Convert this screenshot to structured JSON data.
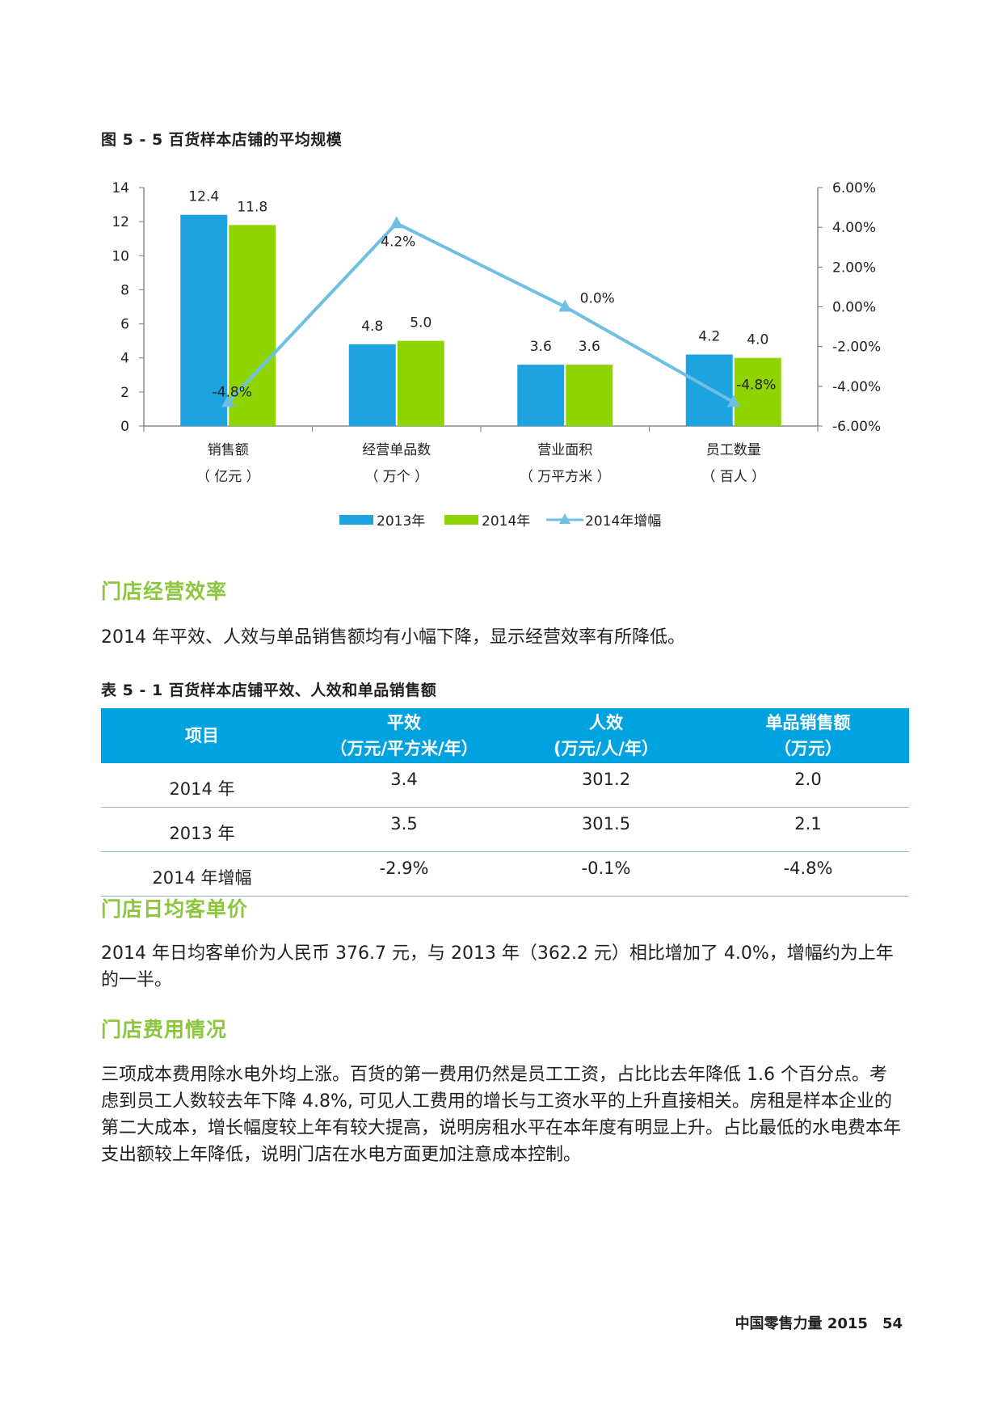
{
  "figure": {
    "title": "图 5 - 5 百货样本店铺的平均规模"
  },
  "chart_data": {
    "type": "bar+line",
    "title": "图 5 - 5 百货样本店铺的平均规模",
    "categories": [
      {
        "name": "销售额",
        "unit": "（ 亿元 ）"
      },
      {
        "name": "经营单品数",
        "unit": "（ 万个 ）"
      },
      {
        "name": "营业面积",
        "unit": "（ 万平方米 ）"
      },
      {
        "name": "员工数量",
        "unit": "（ 百人 ）"
      }
    ],
    "series": [
      {
        "name": "2013年",
        "type": "bar",
        "axis": "left",
        "color": "#1ca3e0",
        "values": [
          12.4,
          4.8,
          3.6,
          4.2
        ],
        "labels": [
          "12.4",
          "4.8",
          "3.6",
          "4.2"
        ]
      },
      {
        "name": "2014年",
        "type": "bar",
        "axis": "left",
        "color": "#8fd400",
        "values": [
          11.8,
          5.0,
          3.6,
          4.0
        ],
        "labels": [
          "11.8",
          "5.0",
          "3.6",
          "4.0"
        ]
      },
      {
        "name": "2014年增幅",
        "type": "line",
        "axis": "right",
        "color": "#6fbfe2",
        "values": [
          -4.8,
          4.2,
          0.0,
          -4.8
        ],
        "labels": [
          "-4.8%",
          "4.2%",
          "0.0%",
          "-4.8%"
        ]
      }
    ],
    "y_left": {
      "range": [
        0,
        14
      ],
      "ticks": [
        "0",
        "2",
        "4",
        "6",
        "8",
        "10",
        "12",
        "14"
      ]
    },
    "y_right": {
      "range": [
        -6,
        6
      ],
      "ticks": [
        "-6.00%",
        "-4.00%",
        "-2.00%",
        "0.00%",
        "2.00%",
        "4.00%",
        "6.00%"
      ]
    },
    "legend_position": "bottom"
  },
  "sections": {
    "efficiency": {
      "heading": "门店经营效率",
      "text": "2014 年平效、人效与单品销售额均有小幅下降，显示经营效率有所降低。"
    },
    "avg_price": {
      "heading": "门店日均客单价",
      "text": "2014 年日均客单价为人民币 376.7 元，与 2013 年（362.2 元）相比增加了 4.0%，增幅约为上年的一半。"
    },
    "expenses": {
      "heading": "门店费用情况",
      "text": "三项成本费用除水电外均上涨。百货的第一费用仍然是员工工资，占比比去年降低 1.6 个百分点。考虑到员工人数较去年下降 4.8%, 可见人工费用的增长与工资水平的上升直接相关。房租是样本企业的第二大成本，增长幅度较上年有较大提高，说明房租水平在本年度有明显上升。占比最低的水电费本年支出额较上年降低，说明门店在水电方面更加注意成本控制。"
    }
  },
  "table": {
    "title": "表 5 - 1 百货样本店铺平效、人效和单品销售额",
    "headers": [
      {
        "l1": "项目",
        "l2": ""
      },
      {
        "l1": "平效",
        "l2": "（万元/平方米/年）"
      },
      {
        "l1": "人效",
        "l2": "(万元/人/年）"
      },
      {
        "l1": "单品销售额",
        "l2": "（万元）"
      }
    ],
    "rows": [
      [
        "2014 年",
        "3.4",
        "301.2",
        "2.0"
      ],
      [
        "2013 年",
        "3.5",
        "301.5",
        "2.1"
      ],
      [
        "2014 年增幅",
        "-2.9%",
        "-0.1%",
        "-4.8%"
      ]
    ]
  },
  "footer": {
    "publication": "中国零售力量 2015",
    "page": "54"
  }
}
